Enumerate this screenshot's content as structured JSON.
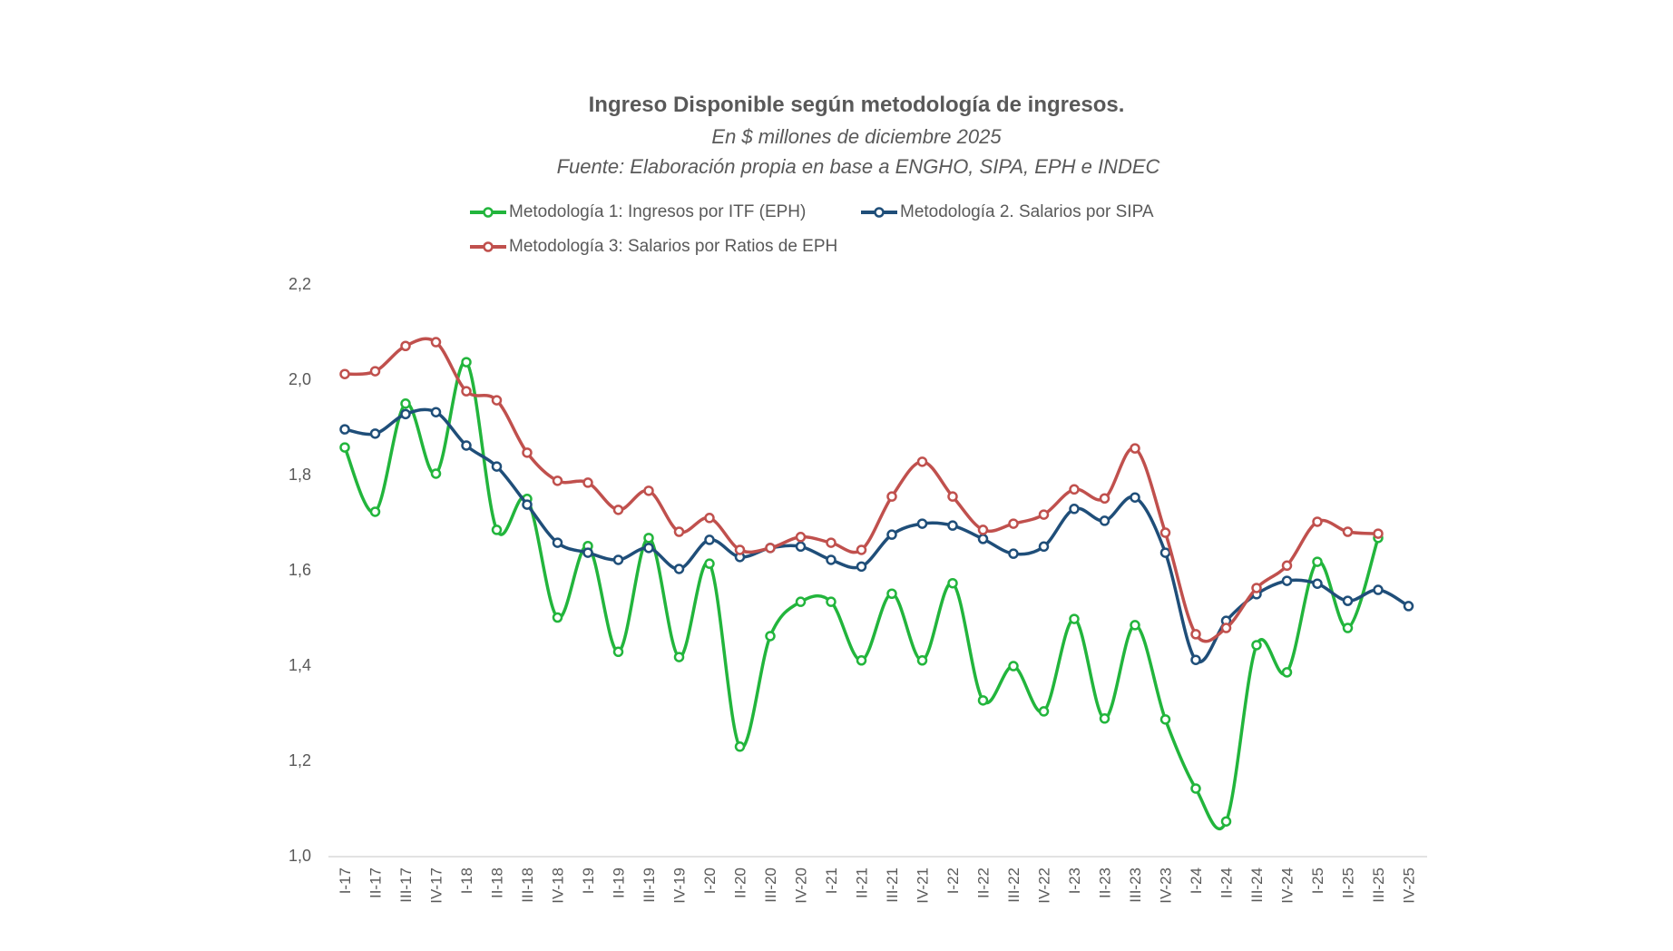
{
  "chart_data": {
    "type": "line",
    "title": "Ingreso Disponible  según metodología  de ingresos.",
    "subtitle": "En $ millones de diciembre 2025",
    "source": "Fuente: Elaboración propia en base a ENGHO, SIPA, EPH e INDEC",
    "xlabel": "",
    "ylabel": "",
    "ylim": [
      1.0,
      2.2
    ],
    "yticks": [
      "1,0",
      "1,2",
      "1,4",
      "1,6",
      "1,8",
      "2,0",
      "2,2"
    ],
    "ytick_values": [
      1.0,
      1.2,
      1.4,
      1.6,
      1.8,
      2.0,
      2.2
    ],
    "grid": false,
    "smooth": true,
    "legend_position": "top",
    "categories": [
      "I-17",
      "II-17",
      "III-17",
      "IV-17",
      "I-18",
      "II-18",
      "III-18",
      "IV-18",
      "I-19",
      "II-19",
      "III-19",
      "IV-19",
      "I-20",
      "II-20",
      "III-20",
      "IV-20",
      "I-21",
      "II-21",
      "III-21",
      "IV-21",
      "I-22",
      "II-22",
      "III-22",
      "IV-22",
      "I-23",
      "II-23",
      "III-23",
      "IV-23",
      "I-24",
      "II-24",
      "III-24",
      "IV-24",
      "I-25",
      "II-25",
      "III-25",
      "IV-25"
    ],
    "series": [
      {
        "name": "Metodología 1: Ingresos por ITF (EPH)",
        "color": "#22B53C",
        "values": [
          1.857,
          1.722,
          1.949,
          1.802,
          2.036,
          1.684,
          1.749,
          1.5,
          1.65,
          1.428,
          1.667,
          1.417,
          1.613,
          1.229,
          1.461,
          1.533,
          1.533,
          1.41,
          1.55,
          1.41,
          1.572,
          1.326,
          1.398,
          1.303,
          1.497,
          1.288,
          1.484,
          1.286,
          1.141,
          1.072,
          1.442,
          1.385,
          1.617,
          1.478,
          1.667,
          null
        ]
      },
      {
        "name": "Metodología 2. Salarios por SIPA",
        "color": "#1F4E79",
        "values": [
          1.895,
          1.886,
          1.927,
          1.931,
          1.861,
          1.817,
          1.737,
          1.657,
          1.636,
          1.621,
          1.646,
          1.602,
          1.663,
          1.627,
          1.646,
          1.649,
          1.621,
          1.607,
          1.674,
          1.697,
          1.693,
          1.665,
          1.634,
          1.649,
          1.728,
          1.703,
          1.752,
          1.636,
          1.411,
          1.493,
          1.549,
          1.577,
          1.571,
          1.535,
          1.558,
          1.524
        ]
      },
      {
        "name": "Metodología 3: Salarios por Ratios de EPH",
        "color": "#C0504D",
        "values": [
          2.011,
          2.017,
          2.07,
          2.078,
          1.975,
          1.956,
          1.846,
          1.787,
          1.783,
          1.726,
          1.766,
          1.68,
          1.709,
          1.642,
          1.646,
          1.669,
          1.657,
          1.642,
          1.754,
          1.827,
          1.754,
          1.684,
          1.697,
          1.716,
          1.769,
          1.75,
          1.855,
          1.678,
          1.465,
          1.478,
          1.562,
          1.609,
          1.701,
          1.68,
          1.676,
          null
        ]
      }
    ]
  }
}
